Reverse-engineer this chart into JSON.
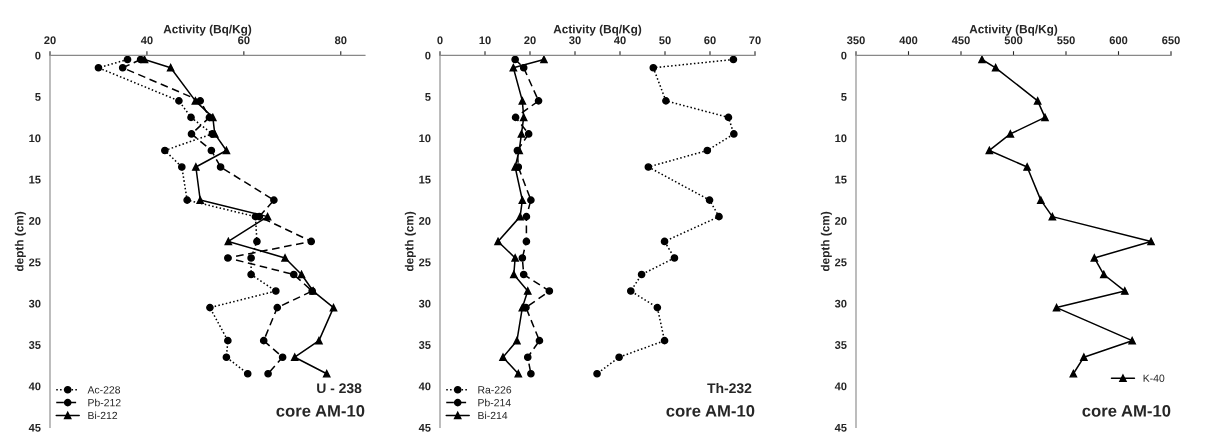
{
  "chart_data": [
    {
      "type": "line",
      "xlabel": "Activity (Bq/Kg)",
      "ylabel": "depth (cm)",
      "xlim": [
        20,
        85
      ],
      "xticks": [
        20,
        40,
        60,
        80
      ],
      "ylim": [
        45,
        0
      ],
      "yticks": [
        0,
        5,
        10,
        15,
        20,
        25,
        30,
        35,
        40,
        45
      ],
      "grid": false,
      "legend": "bottom left",
      "annotations": [
        "U - 238",
        "core AM-10"
      ],
      "series": [
        {
          "name": "Ac-228",
          "color": "#000000",
          "marker": "circle",
          "line_style": "dotted",
          "x": [
            36.0,
            30.0,
            46.6,
            49.1,
            53.5,
            43.7,
            47.2,
            48.3,
            62.4,
            62.7,
            61.5,
            61.5,
            66.6,
            53.0,
            56.7,
            56.4,
            60.8
          ],
          "values": [
            0.5,
            1.5,
            5.5,
            7.5,
            9.5,
            11.5,
            13.5,
            17.5,
            19.5,
            22.5,
            24.5,
            26.5,
            28.5,
            30.5,
            34.5,
            36.5,
            38.5
          ]
        },
        {
          "name": "Pb-212",
          "color": "#000000",
          "marker": "circle",
          "line_style": "dashed",
          "x": [
            38.7,
            35.0,
            51.0,
            52.9,
            49.2,
            53.3,
            55.2,
            66.2,
            63.2,
            73.9,
            56.7,
            70.3,
            74.1,
            66.9,
            64.1,
            68.0,
            65.0
          ],
          "values": [
            0.5,
            1.5,
            5.5,
            7.5,
            9.5,
            11.5,
            13.5,
            17.5,
            19.5,
            22.5,
            24.5,
            26.5,
            28.5,
            30.5,
            34.5,
            36.5,
            38.5
          ]
        },
        {
          "name": "Bi-212",
          "color": "#000000",
          "marker": "triangle",
          "line_style": "solid",
          "x": [
            39.5,
            44.9,
            50.0,
            53.6,
            54.0,
            56.4,
            50.1,
            51.0,
            64.9,
            56.8,
            68.5,
            71.9,
            74.3,
            78.5,
            75.5,
            70.5,
            77.1
          ],
          "values": [
            0.5,
            1.5,
            5.5,
            7.5,
            9.5,
            11.5,
            13.5,
            17.5,
            19.5,
            22.5,
            24.5,
            26.5,
            28.5,
            30.5,
            34.5,
            36.5,
            38.5
          ]
        }
      ]
    },
    {
      "type": "line",
      "xlabel": "Activity (Bq/Kg)",
      "ylabel": "depth (cm)",
      "xlim": [
        0,
        70
      ],
      "xticks": [
        0,
        10,
        20,
        30,
        40,
        50,
        60,
        70
      ],
      "ylim": [
        45,
        0
      ],
      "yticks": [
        0,
        5,
        10,
        15,
        20,
        25,
        30,
        35,
        40,
        45
      ],
      "grid": false,
      "legend": "bottom left",
      "annotations": [
        "Th-232",
        "core AM-10"
      ],
      "series": [
        {
          "name": "Ra-226",
          "color": "#000000",
          "marker": "circle",
          "line_style": "dotted",
          "x": [
            65.2,
            47.4,
            50.2,
            64.1,
            65.3,
            59.4,
            46.3,
            59.9,
            62.0,
            49.9,
            52.1,
            44.8,
            42.4,
            48.3,
            49.9,
            39.8,
            34.9
          ],
          "values": [
            0.5,
            1.5,
            5.5,
            7.5,
            9.5,
            11.5,
            13.5,
            17.5,
            19.5,
            22.5,
            24.5,
            26.5,
            28.5,
            30.5,
            34.5,
            36.5,
            38.5
          ]
        },
        {
          "name": "Pb-214",
          "color": "#000000",
          "marker": "circle",
          "line_style": "dashed",
          "x": [
            16.7,
            18.6,
            21.9,
            16.8,
            19.7,
            17.2,
            17.4,
            20.2,
            19.2,
            19.2,
            18.3,
            18.6,
            24.3,
            19.1,
            22.1,
            19.5,
            20.2
          ],
          "values": [
            0.5,
            1.5,
            5.5,
            7.5,
            9.5,
            11.5,
            13.5,
            17.5,
            19.5,
            22.5,
            24.5,
            26.5,
            28.5,
            30.5,
            34.5,
            36.5,
            38.5
          ]
        },
        {
          "name": "Bi-214",
          "color": "#000000",
          "marker": "triangle",
          "line_style": "solid",
          "x": [
            23.1,
            16.3,
            18.3,
            18.6,
            18.1,
            17.6,
            16.7,
            18.3,
            17.8,
            12.9,
            16.7,
            16.4,
            19.5,
            18.3,
            17.1,
            14.0,
            17.4
          ],
          "values": [
            0.5,
            1.5,
            5.5,
            7.5,
            9.5,
            11.5,
            13.5,
            17.5,
            19.5,
            22.5,
            24.5,
            26.5,
            28.5,
            30.5,
            34.5,
            36.5,
            38.5
          ]
        }
      ]
    },
    {
      "type": "line",
      "xlabel": "Activity (Bq/Kg)",
      "ylabel": "depth (cm)",
      "xlim": [
        350,
        650
      ],
      "xticks": [
        350,
        400,
        450,
        500,
        550,
        600,
        650
      ],
      "ylim": [
        45,
        0
      ],
      "yticks": [
        0,
        5,
        10,
        15,
        20,
        25,
        30,
        35,
        40,
        45
      ],
      "grid": false,
      "legend": "bottom right",
      "annotations": [
        "core AM-10"
      ],
      "series": [
        {
          "name": "K-40",
          "color": "#000000",
          "marker": "triangle",
          "line_style": "solid",
          "x": [
            470,
            483,
            523,
            530,
            497,
            477,
            513,
            526,
            537,
            631,
            577,
            586,
            606,
            541,
            613,
            567,
            557
          ],
          "values": [
            0.5,
            1.5,
            5.5,
            7.5,
            9.5,
            11.5,
            13.5,
            17.5,
            19.5,
            22.5,
            24.5,
            26.5,
            28.5,
            30.5,
            34.5,
            36.5,
            38.5
          ]
        }
      ]
    }
  ]
}
